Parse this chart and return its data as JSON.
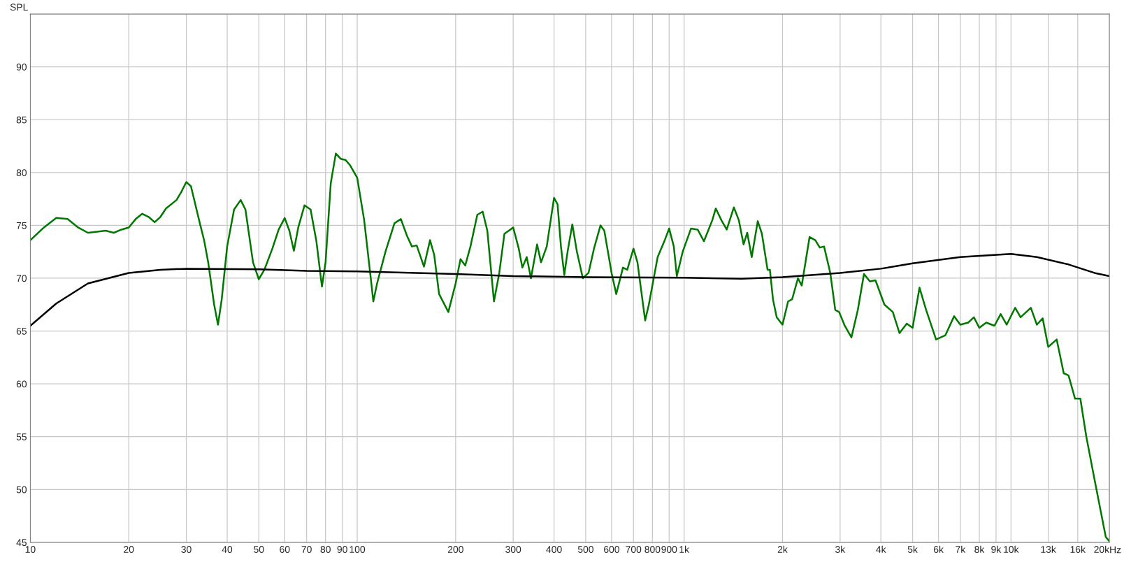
{
  "chart_data": {
    "type": "line",
    "ylabel": "SPL",
    "log": "x",
    "grid": true,
    "xlim": [
      10,
      20000
    ],
    "ylim": [
      45,
      95
    ],
    "xticks": [
      10,
      20,
      30,
      40,
      50,
      60,
      70,
      80,
      90,
      100,
      200,
      300,
      400,
      500,
      600,
      700,
      800,
      900,
      {
        "value": 1000,
        "label": "1k"
      },
      {
        "value": 2000,
        "label": "2k"
      },
      {
        "value": 3000,
        "label": "3k"
      },
      {
        "value": 4000,
        "label": "4k"
      },
      {
        "value": 5000,
        "label": "5k"
      },
      {
        "value": 6000,
        "label": "6k"
      },
      {
        "value": 7000,
        "label": "7k"
      },
      {
        "value": 8000,
        "label": "8k"
      },
      {
        "value": 9000,
        "label": "9k"
      },
      {
        "value": 10000,
        "label": "10k"
      },
      {
        "value": 13000,
        "label": "13k"
      },
      {
        "value": 16000,
        "label": "16k"
      },
      {
        "value": 20000,
        "label": "20k"
      }
    ],
    "xlabel": "Hz",
    "yticks": [
      45,
      50,
      55,
      60,
      65,
      70,
      75,
      80,
      85,
      90
    ],
    "series": [
      {
        "color": "#007800",
        "x": [
          10,
          11,
          12,
          13,
          14,
          15,
          16,
          17,
          18,
          19,
          20,
          21,
          22,
          23,
          24,
          25,
          26,
          28,
          29,
          30,
          31,
          33,
          34,
          35,
          36.5,
          37.5,
          38.5,
          40,
          42,
          44,
          45.5,
          48,
          50,
          52,
          55,
          57.5,
          60,
          62,
          64,
          66,
          69,
          72,
          75,
          78,
          80,
          83,
          86,
          89,
          92,
          95,
          100,
          105,
          110,
          112,
          115,
          122,
          130,
          136,
          142,
          147,
          152,
          160,
          167,
          172,
          178,
          190,
          200,
          207,
          214,
          222,
          233,
          242,
          250,
          262,
          272,
          282,
          300,
          312,
          320,
          330,
          340,
          355,
          365,
          380,
          400,
          410,
          420,
          430,
          440,
          455,
          470,
          490,
          510,
          530,
          555,
          570,
          600,
          620,
          650,
          670,
          700,
          720,
          760,
          780,
          830,
          870,
          900,
          930,
          950,
          990,
          1050,
          1100,
          1150,
          1220,
          1250,
          1300,
          1350,
          1420,
          1470,
          1520,
          1560,
          1610,
          1680,
          1730,
          1800,
          1830,
          1870,
          1920,
          2000,
          2080,
          2140,
          2230,
          2290,
          2420,
          2520,
          2600,
          2680,
          2800,
          2900,
          2980,
          3100,
          3250,
          3400,
          3550,
          3700,
          3850,
          4100,
          4350,
          4560,
          4800,
          5000,
          5250,
          5500,
          5900,
          6300,
          6700,
          7000,
          7400,
          7700,
          8000,
          8400,
          8900,
          9300,
          9700,
          10300,
          10700,
          11500,
          12000,
          12500,
          13000,
          13800,
          14500,
          15000,
          15700,
          16300,
          17000,
          18000,
          18800,
          19500,
          20000
        ],
        "values": [
          73.6,
          74.8,
          75.7,
          75.6,
          74.8,
          74.3,
          74.4,
          74.5,
          74.3,
          74.6,
          74.8,
          75.6,
          76.1,
          75.8,
          75.3,
          75.8,
          76.6,
          77.4,
          78.2,
          79.1,
          78.7,
          75.2,
          73.6,
          71.5,
          67.5,
          65.6,
          68,
          73,
          76.5,
          77.4,
          76.5,
          71.5,
          69.9,
          70.8,
          72.8,
          74.6,
          75.7,
          74.5,
          72.6,
          74.8,
          76.9,
          76.5,
          73.5,
          69.2,
          71.5,
          79,
          81.8,
          81.3,
          81.2,
          80.7,
          79.5,
          75.5,
          70,
          67.8,
          69.5,
          72.5,
          75.2,
          75.6,
          74,
          73,
          73.1,
          71.1,
          73.6,
          72.2,
          68.5,
          66.8,
          69.5,
          71.8,
          71.2,
          73,
          76,
          76.3,
          74.5,
          67.8,
          70.5,
          74.2,
          74.8,
          72.8,
          71,
          72,
          70,
          73.2,
          71.5,
          73,
          77.6,
          77,
          73,
          70.3,
          72.5,
          75.1,
          72.5,
          70,
          70.5,
          72.8,
          75,
          74.5,
          70.5,
          68.5,
          71,
          70.8,
          72.8,
          71.5,
          66,
          67.5,
          72,
          73.5,
          74.7,
          73,
          70.2,
          72.5,
          74.7,
          74.6,
          73.5,
          75.5,
          76.6,
          75.5,
          74.6,
          76.7,
          75.5,
          73.2,
          74.3,
          72,
          75.4,
          74.2,
          70.8,
          70.8,
          68,
          66.3,
          65.6,
          67.8,
          68,
          70,
          69.3,
          73.9,
          73.6,
          72.9,
          73,
          70.5,
          67,
          66.8,
          65.5,
          64.4,
          67,
          70.4,
          69.7,
          69.8,
          67.5,
          66.8,
          64.8,
          65.7,
          65.3,
          69.1,
          67,
          64.2,
          64.6,
          66.4,
          65.6,
          65.8,
          66.3,
          65.3,
          65.8,
          65.5,
          66.6,
          65.6,
          67.2,
          66.3,
          67.2,
          65.6,
          66.2,
          63.5,
          64.2,
          61,
          60.8,
          58.6,
          58.6,
          55,
          51,
          48,
          45.5,
          45.1
        ]
      },
      {
        "color": "#000000",
        "x": [
          10,
          12,
          15,
          20,
          25,
          30,
          50,
          70,
          100,
          200,
          300,
          500,
          1000,
          1500,
          2000,
          3000,
          4000,
          5000,
          7000,
          10000,
          12000,
          15000,
          18000,
          20000
        ],
        "values": [
          65.5,
          67.6,
          69.5,
          70.5,
          70.8,
          70.9,
          70.85,
          70.7,
          70.65,
          70.4,
          70.2,
          70.1,
          70.05,
          69.95,
          70.1,
          70.5,
          70.9,
          71.4,
          72.0,
          72.3,
          72.0,
          71.3,
          70.5,
          70.2
        ]
      }
    ]
  }
}
